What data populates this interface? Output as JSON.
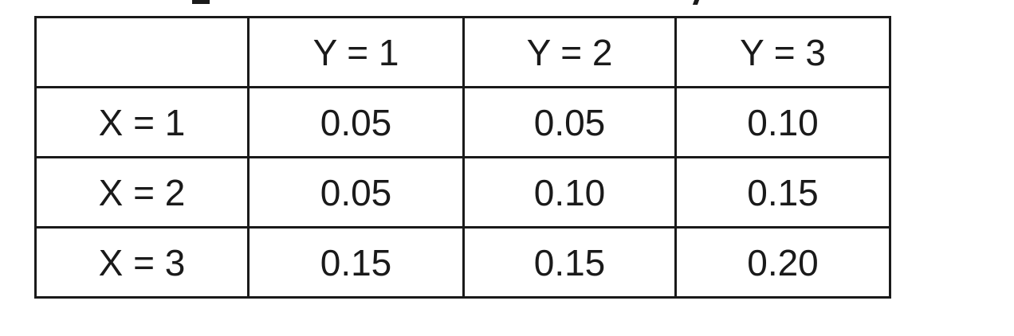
{
  "chart_data": {
    "type": "table",
    "columns": [
      "",
      "Y = 1",
      "Y = 2",
      "Y = 3"
    ],
    "rows": [
      {
        "label": "X = 1",
        "values": [
          "0.05",
          "0.05",
          "0.10"
        ]
      },
      {
        "label": "X = 2",
        "values": [
          "0.05",
          "0.10",
          "0.15"
        ]
      },
      {
        "label": "X = 3",
        "values": [
          "0.15",
          "0.15",
          "0.20"
        ]
      }
    ]
  }
}
